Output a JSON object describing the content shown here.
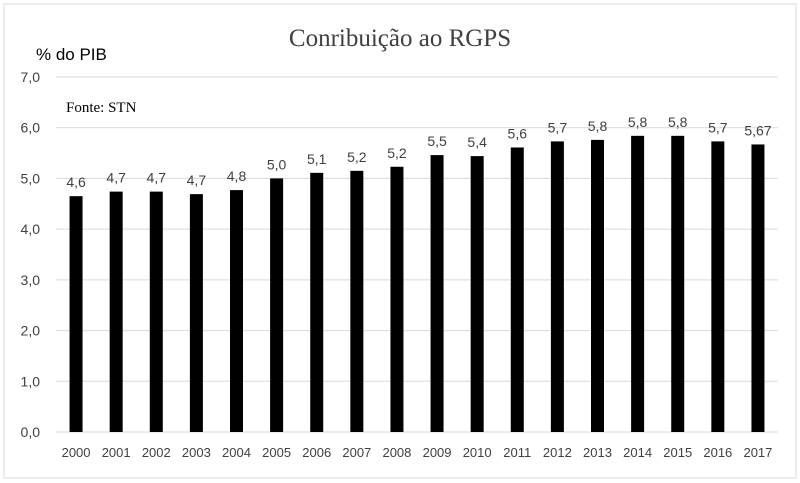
{
  "chart_data": {
    "type": "bar",
    "title": "Conribuição ao RGPS",
    "ylabel": "% do PIB",
    "source_note": "Fonte: STN",
    "xlabel": "",
    "ylim": [
      0,
      7
    ],
    "yticks": [
      "0,0",
      "1,0",
      "2,0",
      "3,0",
      "4,0",
      "5,0",
      "6,0",
      "7,0"
    ],
    "grid": true,
    "bar_color": "#000000",
    "categories": [
      "2000",
      "2001",
      "2002",
      "2003",
      "2004",
      "2005",
      "2006",
      "2007",
      "2008",
      "2009",
      "2010",
      "2011",
      "2012",
      "2013",
      "2014",
      "2015",
      "2016",
      "2017"
    ],
    "values": [
      4.65,
      4.74,
      4.74,
      4.69,
      4.77,
      5.0,
      5.11,
      5.15,
      5.23,
      5.46,
      5.44,
      5.61,
      5.73,
      5.76,
      5.84,
      5.84,
      5.73,
      5.67
    ],
    "data_labels": [
      "4,6",
      "4,7",
      "4,7",
      "4,7",
      "4,8",
      "5,0",
      "5,1",
      "5,2",
      "5,2",
      "5,5",
      "5,4",
      "5,6",
      "5,7",
      "5,8",
      "5,8",
      "5,8",
      "5,7",
      "5,67"
    ]
  }
}
